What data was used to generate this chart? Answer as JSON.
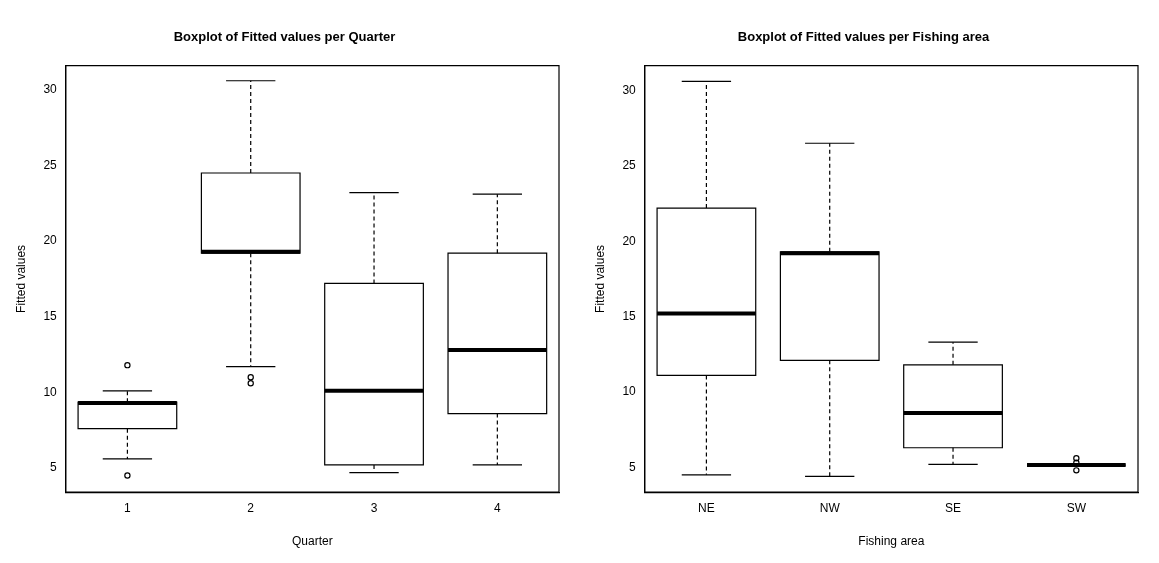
{
  "chart_data": [
    {
      "type": "box",
      "title": "Boxplot of Fitted values per Quarter",
      "xlabel": "Quarter",
      "ylabel": "Fitted values",
      "categories": [
        "1",
        "2",
        "3",
        "4"
      ],
      "ylim": [
        3.4,
        31.6
      ],
      "yticks": [
        5,
        10,
        15,
        20,
        25,
        30
      ],
      "grid": false,
      "legend": false,
      "boxes": [
        {
          "low": 5.6,
          "q1": 7.6,
          "median": 9.3,
          "q3": 9.35,
          "high": 10.1,
          "outliers": [
            11.8,
            4.5
          ]
        },
        {
          "low": 11.7,
          "q1": 19.2,
          "median": 19.3,
          "q3": 24.5,
          "high": 30.6,
          "outliers": [
            11.0,
            10.6
          ]
        },
        {
          "low": 4.7,
          "q1": 5.2,
          "median": 10.1,
          "q3": 17.2,
          "high": 23.2
        },
        {
          "low": 5.2,
          "q1": 8.6,
          "median": 12.8,
          "q3": 19.2,
          "high": 23.1
        }
      ]
    },
    {
      "type": "box",
      "title": "Boxplot of Fitted values per Fishing area",
      "xlabel": "Fishing area",
      "ylabel": "Fitted values",
      "categories": [
        "NE",
        "NW",
        "SE",
        "SW"
      ],
      "ylim": [
        3.35,
        31.65
      ],
      "yticks": [
        5,
        10,
        15,
        20,
        25,
        30
      ],
      "grid": false,
      "legend": false,
      "boxes": [
        {
          "low": 4.5,
          "q1": 11.1,
          "median": 15.2,
          "q3": 22.2,
          "high": 30.6
        },
        {
          "low": 4.4,
          "q1": 12.1,
          "median": 19.2,
          "q3": 19.3,
          "high": 26.5
        },
        {
          "low": 5.2,
          "q1": 6.3,
          "median": 8.6,
          "q3": 11.8,
          "high": 13.3
        },
        {
          "low": 5.15,
          "q1": 5.15,
          "median": 5.15,
          "q3": 5.15,
          "high": 5.15,
          "outliers": [
            5.6,
            5.3,
            4.8
          ]
        }
      ]
    }
  ]
}
